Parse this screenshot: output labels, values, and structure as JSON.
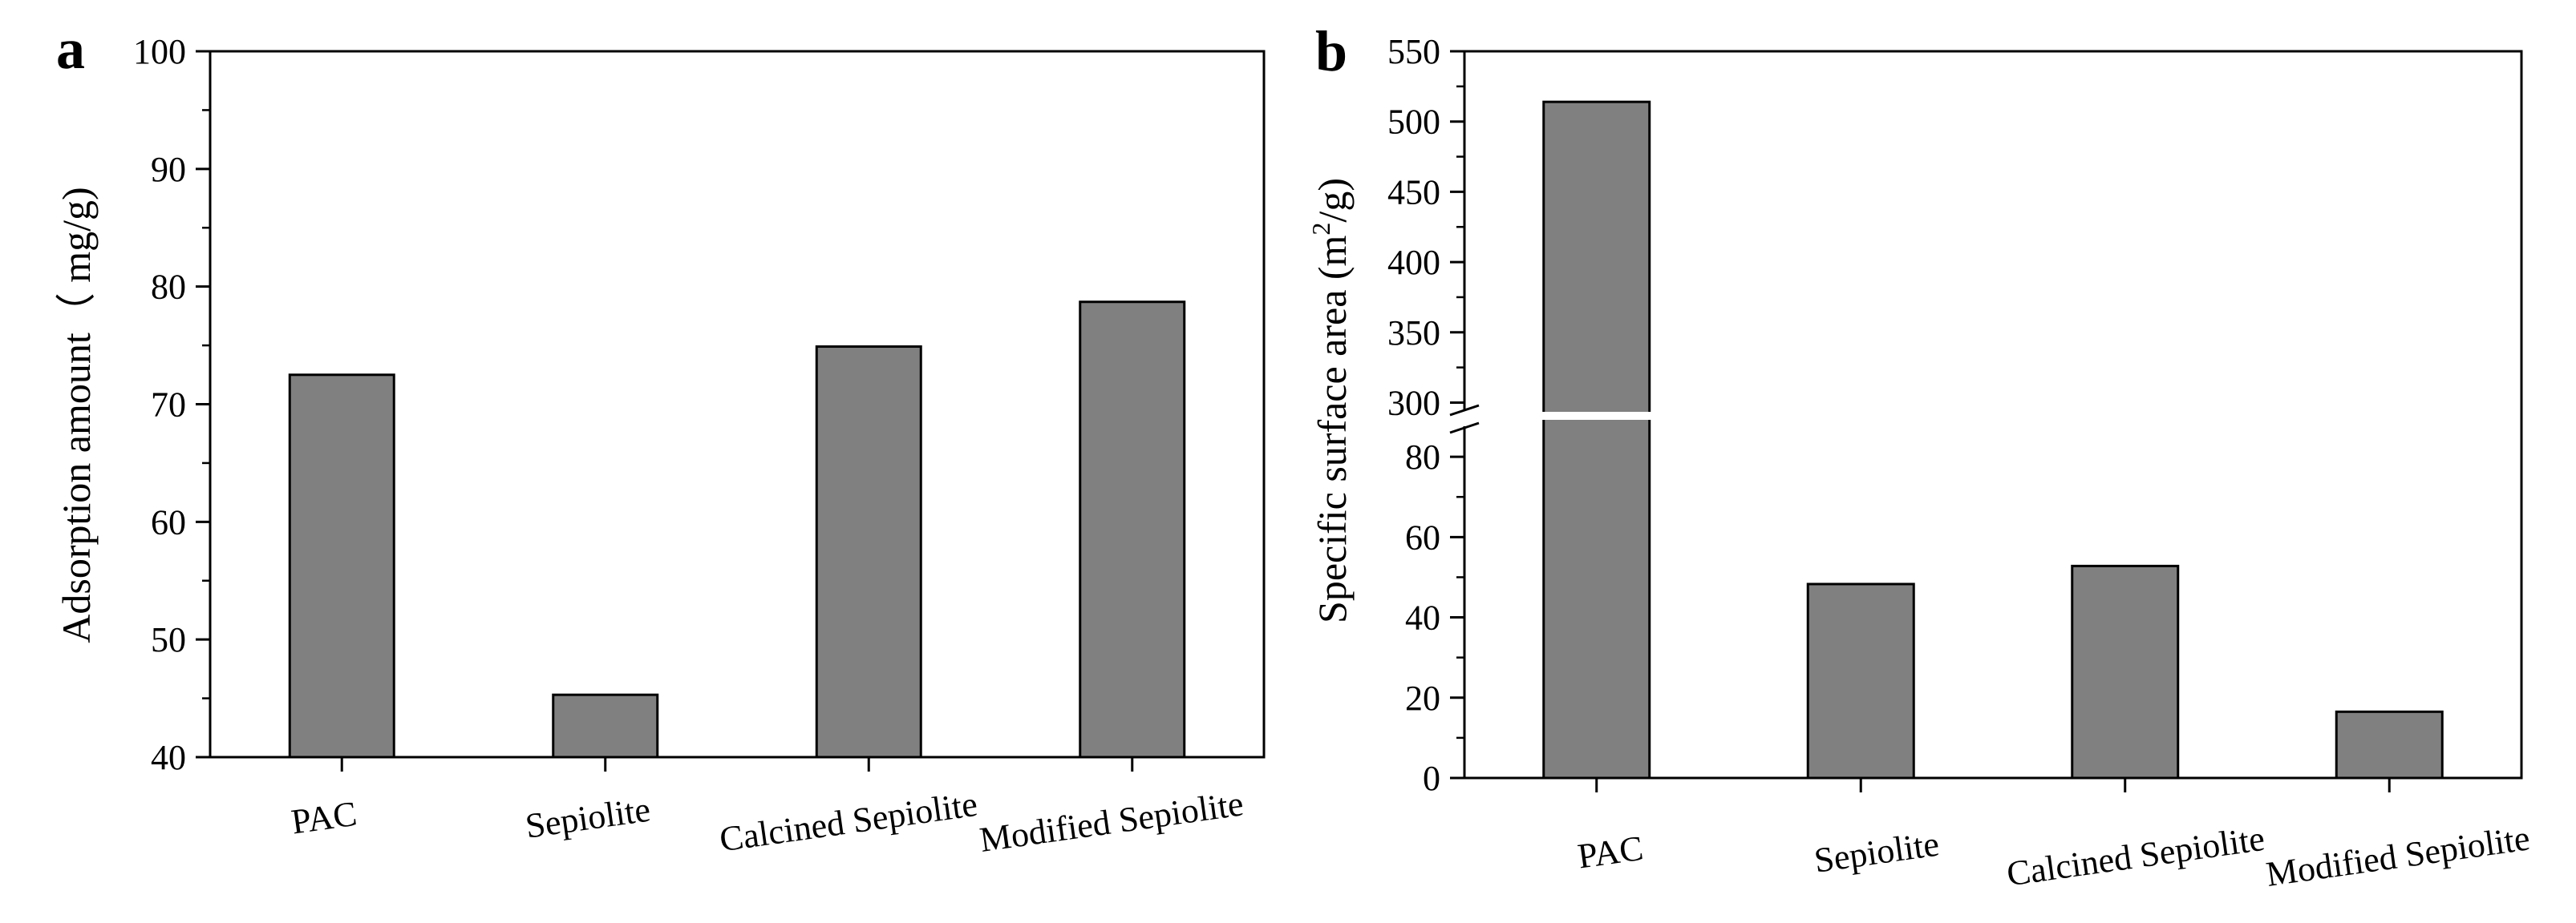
{
  "chart_data": [
    {
      "type": "bar",
      "panel": "a",
      "title": "",
      "ylabel": "Adsorption amount（  mg/g)",
      "xlabel": "",
      "categories": [
        "PAC",
        "Sepiolite",
        "Calcined Sepiolite",
        "Modified Sepiolite"
      ],
      "values": [
        72.5,
        45.3,
        74.9,
        78.7
      ],
      "ylim": [
        40,
        100
      ],
      "yticks": [
        "40",
        "50",
        "60",
        "70",
        "80",
        "90",
        "100"
      ],
      "ytick_values": [
        40,
        50,
        60,
        70,
        80,
        90,
        100
      ],
      "grid": false,
      "bar_color": "#808080"
    },
    {
      "type": "bar",
      "panel": "b",
      "title": "",
      "ylabel_main": "Specific surface area (m",
      "ylabel_sup": "2",
      "ylabel_tail": "/g)",
      "xlabel": "",
      "categories": [
        "PAC",
        "Sepiolite",
        "Calcined Sepiolite",
        "Modified Sepiolite"
      ],
      "values": [
        514,
        48.3,
        52.8,
        16.5
      ],
      "axis_break": {
        "lower": [
          0,
          90
        ],
        "upper": [
          290,
          550
        ]
      },
      "yticks_lower": [
        "0",
        "20",
        "40",
        "60",
        "80"
      ],
      "ytick_values_lower": [
        0,
        20,
        40,
        60,
        80
      ],
      "yticks_upper": [
        "300",
        "350",
        "400",
        "450",
        "500",
        "550"
      ],
      "ytick_values_upper": [
        300,
        350,
        400,
        450,
        500,
        550
      ],
      "grid": false,
      "bar_color": "#808080"
    }
  ]
}
